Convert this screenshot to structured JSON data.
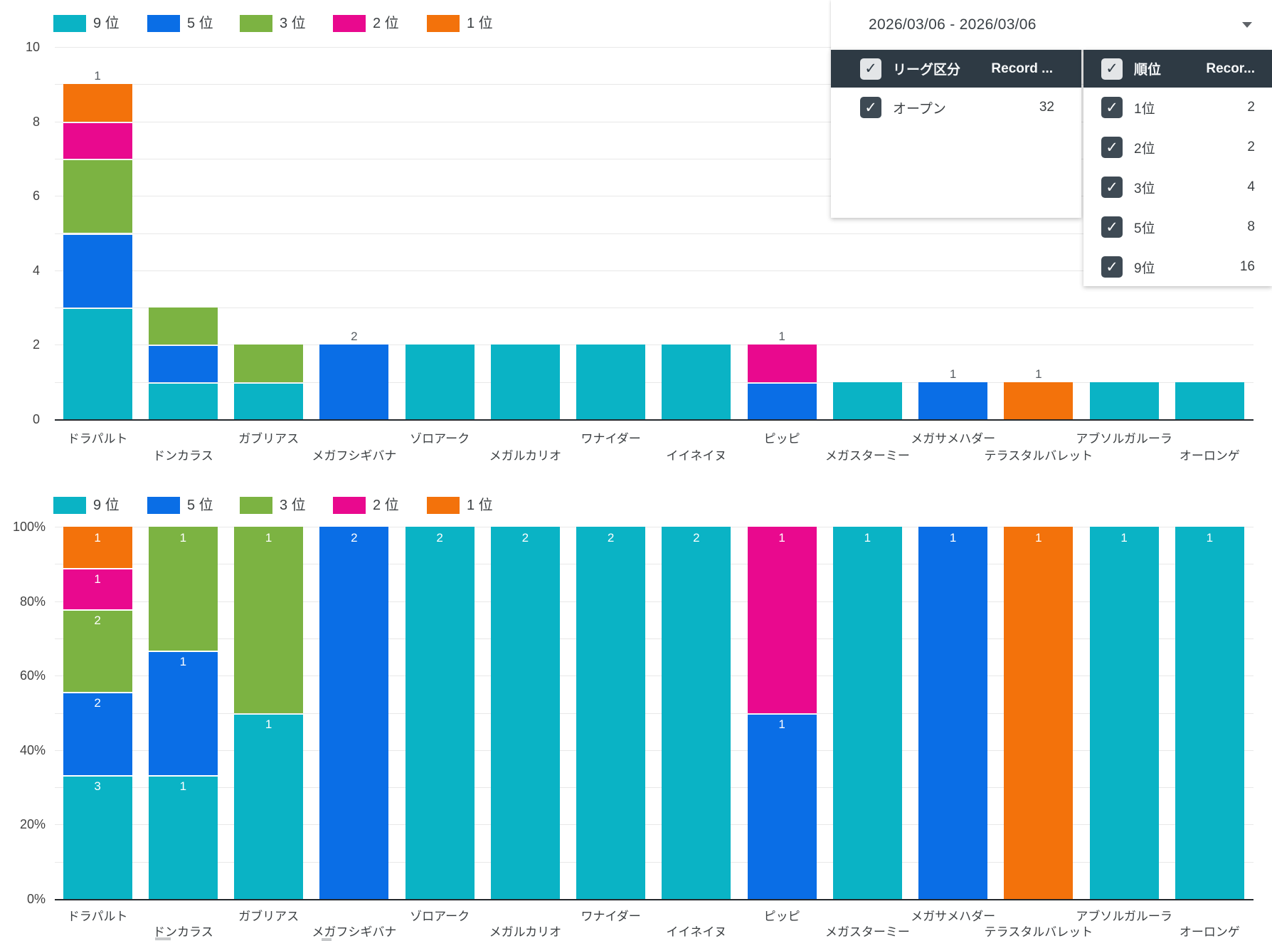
{
  "filters": {
    "date_range": "2026/03/06 - 2026/03/06",
    "league": {
      "header": {
        "title": "リーグ区分",
        "records_label": "Record ..."
      },
      "rows": [
        {
          "label": "オープン",
          "value": "32",
          "checked": true
        }
      ]
    },
    "rank": {
      "header": {
        "title": "順位",
        "records_label": "Recor..."
      },
      "rows": [
        {
          "label": "1位",
          "value": "2",
          "checked": true
        },
        {
          "label": "2位",
          "value": "2",
          "checked": true
        },
        {
          "label": "3位",
          "value": "4",
          "checked": true
        },
        {
          "label": "5位",
          "value": "8",
          "checked": true
        },
        {
          "label": "9位",
          "value": "16",
          "checked": true
        }
      ]
    }
  },
  "legend": {
    "items": [
      {
        "label": "9 位",
        "color": "#0ab3c5"
      },
      {
        "label": "5 位",
        "color": "#0a6ee6"
      },
      {
        "label": "3 位",
        "color": "#7cb342"
      },
      {
        "label": "2 位",
        "color": "#e9098e"
      },
      {
        "label": "1 位",
        "color": "#f3720b"
      }
    ]
  },
  "chart_data": [
    {
      "type": "bar",
      "stacked": true,
      "value_mode": "absolute",
      "title": "",
      "xlabel": "",
      "ylabel": "",
      "ylim": [
        0,
        10
      ],
      "yticks": [
        "0",
        "2",
        "4",
        "6",
        "8",
        "10"
      ],
      "minor_grid_step": 1,
      "grid": true,
      "legend_position": "top",
      "bar_label_position": "above-segment-top",
      "categories": [
        "ドラパルト",
        "ドンカラス",
        "ガブリアス",
        "メガフシギバナ",
        "ゾロアーク",
        "メガルカリオ",
        "ワナイダー",
        "イイネイヌ",
        "ピッピ",
        "メガスターミー",
        "メガサメハダー",
        "テラスタルバレット",
        "アブソルガルーラ",
        "オーロンゲ"
      ],
      "series": [
        {
          "name": "9位",
          "color": "#0ab3c5",
          "label_color": "#ffffff",
          "values": [
            3,
            1,
            1,
            0,
            2,
            2,
            2,
            2,
            0,
            1,
            0,
            0,
            1,
            1
          ]
        },
        {
          "name": "5位",
          "color": "#0a6ee6",
          "label_color": "#565c61",
          "values": [
            2,
            1,
            0,
            2,
            0,
            0,
            0,
            0,
            1,
            0,
            1,
            0,
            0,
            0
          ]
        },
        {
          "name": "3位",
          "color": "#7cb342",
          "label_color": "#ffffff",
          "values": [
            2,
            1,
            1,
            0,
            0,
            0,
            0,
            0,
            0,
            0,
            0,
            0,
            0,
            0
          ]
        },
        {
          "name": "2位",
          "color": "#e9098e",
          "label_color": "#565c61",
          "values": [
            1,
            0,
            0,
            0,
            0,
            0,
            0,
            0,
            1,
            0,
            0,
            0,
            0,
            0
          ]
        },
        {
          "name": "1位",
          "color": "#f3720b",
          "label_color": "#565c61",
          "values": [
            1,
            0,
            0,
            0,
            0,
            0,
            0,
            0,
            0,
            0,
            0,
            1,
            0,
            0
          ]
        }
      ]
    },
    {
      "type": "bar",
      "stacked": true,
      "value_mode": "percent",
      "title": "",
      "xlabel": "",
      "ylabel": "",
      "ylim": [
        0,
        100
      ],
      "yticks": [
        "0%",
        "20%",
        "40%",
        "60%",
        "80%",
        "100%"
      ],
      "minor_grid_step": 10,
      "grid": true,
      "legend_position": "top",
      "bar_label_position": "inside-segment-top",
      "bar_label_color": "#ffffff",
      "categories": [
        "ドラパルト",
        "ドンカラス",
        "ガブリアス",
        "メガフシギバナ",
        "ゾロアーク",
        "メガルカリオ",
        "ワナイダー",
        "イイネイヌ",
        "ピッピ",
        "メガスターミー",
        "メガサメハダー",
        "テラスタルバレット",
        "アブソルガルーラ",
        "オーロンゲ"
      ],
      "series": [
        {
          "name": "9位",
          "color": "#0ab3c5",
          "values": [
            3,
            1,
            1,
            0,
            2,
            2,
            2,
            2,
            0,
            1,
            0,
            0,
            1,
            1
          ]
        },
        {
          "name": "5位",
          "color": "#0a6ee6",
          "values": [
            2,
            1,
            0,
            2,
            0,
            0,
            0,
            0,
            1,
            0,
            1,
            0,
            0,
            0
          ]
        },
        {
          "name": "3位",
          "color": "#7cb342",
          "values": [
            2,
            1,
            1,
            0,
            0,
            0,
            0,
            0,
            0,
            0,
            0,
            0,
            0,
            0
          ]
        },
        {
          "name": "2位",
          "color": "#e9098e",
          "values": [
            1,
            0,
            0,
            0,
            0,
            0,
            0,
            0,
            1,
            0,
            0,
            0,
            0,
            0
          ]
        },
        {
          "name": "1位",
          "color": "#f3720b",
          "values": [
            1,
            0,
            0,
            0,
            0,
            0,
            0,
            0,
            0,
            0,
            0,
            1,
            0,
            0
          ]
        }
      ]
    }
  ]
}
